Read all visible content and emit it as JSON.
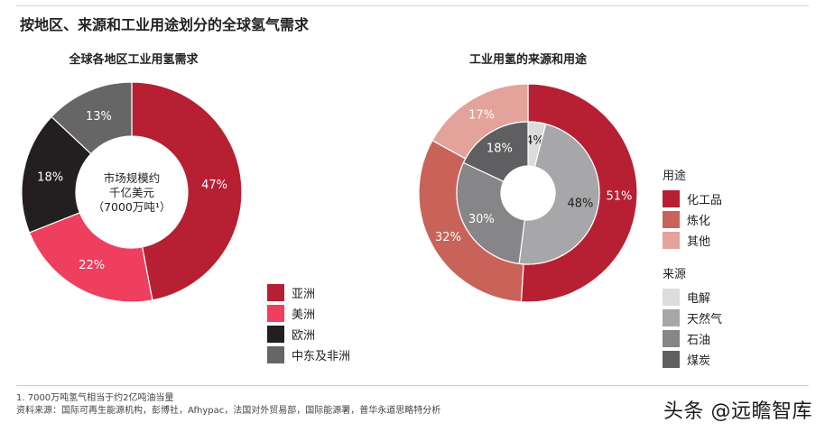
{
  "title": "按地区、来源和工业用途划分的全球氢气需求",
  "chart_data": [
    {
      "type": "pie",
      "title": "全球各地区工业用氢需求",
      "center_label": [
        "市场规模约",
        "千亿美元",
        "（7000万吨¹）"
      ],
      "categories": [
        "亚洲",
        "美洲",
        "欧洲",
        "中东及非洲"
      ],
      "values": [
        47,
        22,
        18,
        13
      ],
      "value_labels": [
        "47%",
        "22%",
        "18%",
        "13%"
      ],
      "colors": [
        "#b71f32",
        "#ee3f5f",
        "#231f20",
        "#666666"
      ]
    },
    {
      "type": "pie",
      "title": "工业用氢的来源和用途",
      "series": [
        {
          "name": "用途",
          "ring": "outer",
          "categories": [
            "化工品",
            "炼化",
            "其他"
          ],
          "values": [
            51,
            32,
            17
          ],
          "value_labels": [
            "51%",
            "32%",
            "17%"
          ],
          "colors": [
            "#b71f32",
            "#c9635a",
            "#e3a39a"
          ]
        },
        {
          "name": "来源",
          "ring": "inner",
          "categories": [
            "电解",
            "天然气",
            "石油",
            "煤炭"
          ],
          "values": [
            4,
            48,
            30,
            18
          ],
          "value_labels": [
            "4%",
            "48%",
            "30%",
            "18%"
          ],
          "colors": [
            "#dcdcdc",
            "#a7a7a9",
            "#868688",
            "#5f5f61"
          ]
        }
      ]
    }
  ],
  "legends": {
    "use_title": "用途",
    "source_title": "来源"
  },
  "footnotes": {
    "note1": "1. 7000万吨氢气相当于约2亿吨油当量",
    "note2": "资料来源：国际可再生能源机构，彭博社，Afhypac，法国对外贸易部，国际能源署，普华永道思略特分析"
  },
  "watermark": "头条 @远瞻智库"
}
